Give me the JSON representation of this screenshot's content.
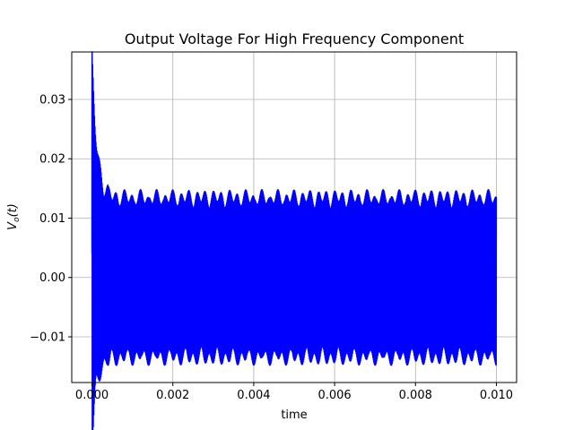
{
  "chart_data": {
    "type": "line",
    "title": "Output Voltage For High Frequency Component",
    "xlabel": "time",
    "ylabel_main": "V",
    "ylabel_sub": "o",
    "ylabel_arg": "(t)",
    "xlim": [
      -0.0005,
      0.0105
    ],
    "ylim": [
      -0.0177,
      0.038
    ],
    "xticks": [
      0.0,
      0.002,
      0.004,
      0.006,
      0.008,
      0.01
    ],
    "xtick_labels": [
      "0.000",
      "0.002",
      "0.004",
      "0.006",
      "0.008",
      "0.010"
    ],
    "yticks": [
      -0.01,
      0.0,
      0.01,
      0.02,
      0.03
    ],
    "ytick_labels": [
      "−0.01",
      "0.00",
      "0.01",
      "0.02",
      "0.03"
    ],
    "grid": true,
    "series": [
      {
        "color": "#0000ff",
        "x_start": 0.0,
        "x_end": 0.01,
        "initial_peak": 0.0355,
        "steady_amplitude": 0.0148,
        "decay_time_constant": 0.00012,
        "carrier_frequency_hz": 50000,
        "envelope_beat_period": 0.0002
      }
    ]
  }
}
